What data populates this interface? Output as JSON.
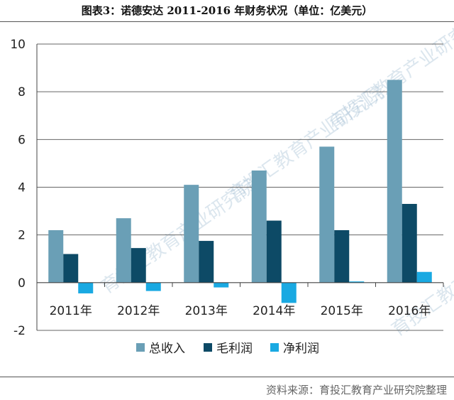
{
  "header": {
    "title": "图表3：诺德安达 2011-2016 年财务状况（单位：亿美元）"
  },
  "footer": {
    "source": "资料来源：育投汇教育产业研究院整理"
  },
  "watermark": "育投汇教育产业研究院",
  "colors": {
    "revenue": "#6a9fb6",
    "gross": "#0d4a66",
    "net": "#19a9e2",
    "axis": "#444444",
    "grid": "#666666"
  },
  "chart_data": {
    "type": "bar",
    "categories": [
      "2011年",
      "2012年",
      "2013年",
      "2014年",
      "2015年",
      "2016年"
    ],
    "series": [
      {
        "name": "总收入",
        "values": [
          2.2,
          2.7,
          4.1,
          4.7,
          5.7,
          8.5
        ]
      },
      {
        "name": "毛利润",
        "values": [
          1.2,
          1.45,
          1.75,
          2.6,
          2.2,
          3.3
        ]
      },
      {
        "name": "净利润",
        "values": [
          -0.45,
          -0.35,
          -0.2,
          -0.85,
          0.05,
          0.45
        ]
      }
    ],
    "ylim": [
      -2,
      10
    ],
    "yticks": [
      -2,
      0,
      2,
      4,
      6,
      8,
      10
    ],
    "grid": true,
    "legend": "bottom"
  }
}
